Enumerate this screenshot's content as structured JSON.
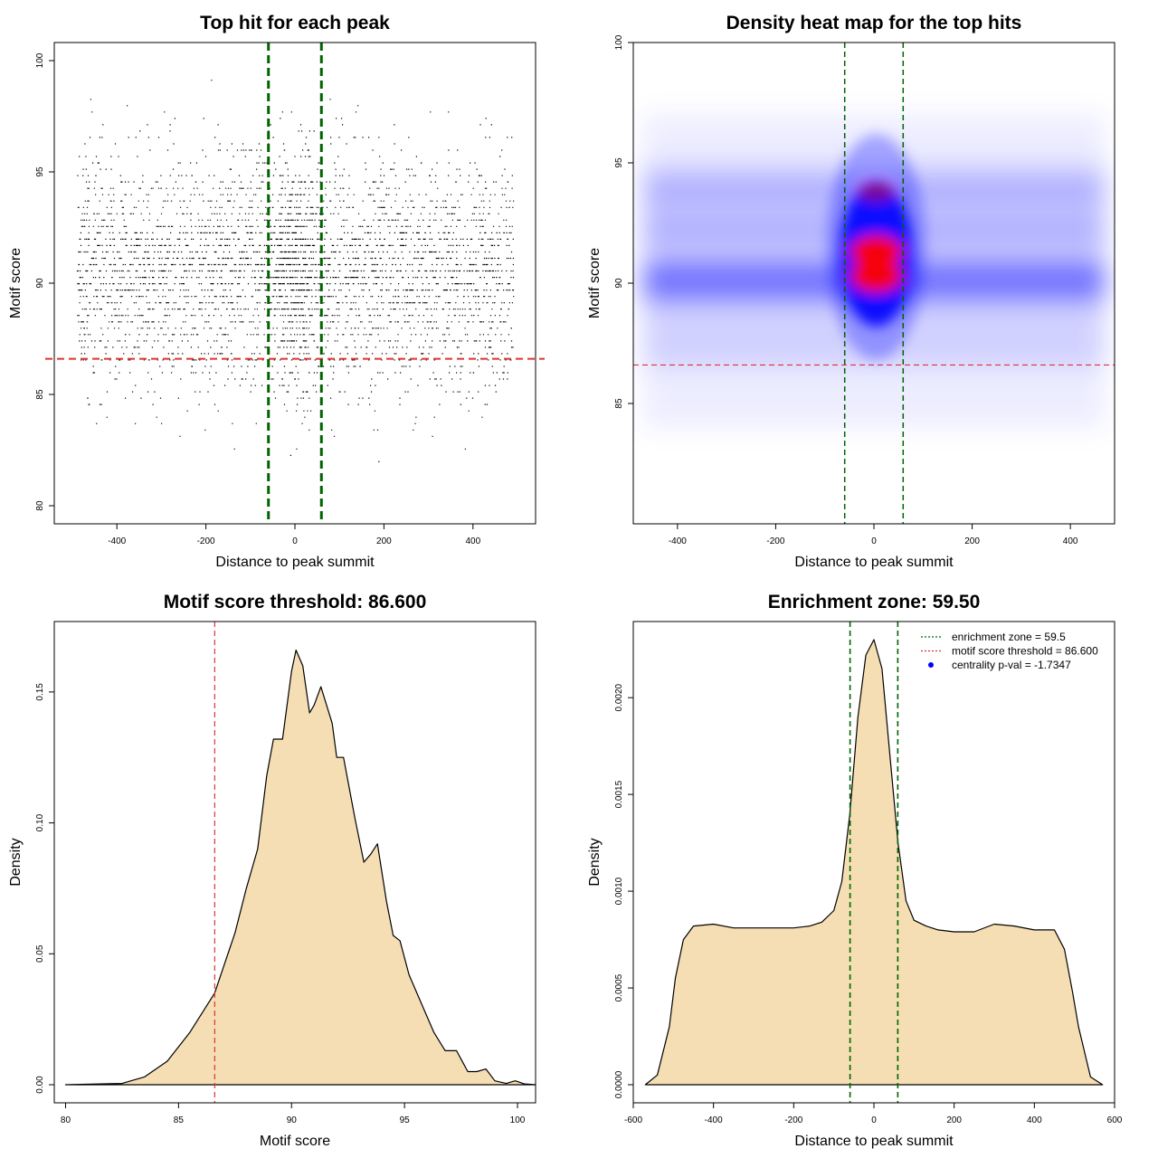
{
  "colors": {
    "point": "#000000",
    "threshold_line": "#dd3333",
    "zone_line": "#006400",
    "density_fill": "#f5deb3",
    "heat_low": "#ffffff",
    "heat_mid": "#0000ff",
    "heat_high": "#ff0000",
    "legend_dot": "#0000ff"
  },
  "chart_data": [
    {
      "type": "scatter",
      "title": "Top hit for each peak",
      "xlabel": "Distance to peak summit",
      "ylabel": "Motif score",
      "xlim": [
        -500,
        500
      ],
      "ylim": [
        80,
        100
      ],
      "xticks": [
        -400,
        -200,
        0,
        200,
        400
      ],
      "yticks": [
        80,
        85,
        90,
        95,
        100
      ],
      "x_range_of_points": [
        -490,
        490
      ],
      "score_center": 90.5,
      "score_spread": 2.6,
      "central_zone_enrichment": true,
      "threshold": 86.6,
      "enrichment_zone": [
        -59.5,
        59.5
      ]
    },
    {
      "type": "heatmap",
      "title": "Density heat map for the top hits",
      "xlabel": "Distance to peak summit",
      "ylabel": "Motif score",
      "xlim": [
        -490,
        490
      ],
      "ylim": [
        80,
        100
      ],
      "xticks": [
        -400,
        -200,
        0,
        200,
        400
      ],
      "yticks": [
        85,
        90,
        95,
        100
      ],
      "hotspots": [
        {
          "x": 5,
          "y": 91.3,
          "intensity": "high"
        },
        {
          "x": 5,
          "y": 90.3,
          "intensity": "high"
        },
        {
          "x": 5,
          "y": 93.8,
          "intensity": "medium"
        }
      ],
      "background_bands": [
        89.8,
        90.4,
        92.2,
        93.8
      ],
      "threshold": 86.6,
      "enrichment_zone": [
        -59.5,
        59.5
      ]
    },
    {
      "type": "area",
      "title": "Motif score threshold: 86.600",
      "xlabel": "Motif score",
      "ylabel": "Density",
      "xlim": [
        79.5,
        100.8
      ],
      "ylim": [
        0,
        0.17
      ],
      "xticks": [
        80,
        85,
        90,
        95,
        100
      ],
      "yticks": [
        0,
        0.05,
        0.1,
        0.15
      ],
      "ytick_labels": [
        "0.00",
        "0.05",
        "0.10",
        "0.15"
      ],
      "x": [
        80.0,
        82.5,
        83.5,
        84.5,
        85.5,
        86.6,
        87.5,
        88.0,
        88.5,
        88.9,
        89.2,
        89.6,
        90.0,
        90.2,
        90.5,
        90.8,
        91.0,
        91.3,
        91.8,
        92.0,
        92.3,
        92.8,
        93.2,
        93.5,
        93.8,
        94.2,
        94.5,
        94.8,
        95.2,
        95.8,
        96.3,
        96.8,
        97.3,
        97.8,
        98.2,
        98.6,
        99.0,
        99.5,
        99.9,
        100.3,
        100.8
      ],
      "y": [
        0,
        0.0005,
        0.003,
        0.009,
        0.02,
        0.035,
        0.058,
        0.075,
        0.09,
        0.118,
        0.132,
        0.132,
        0.158,
        0.166,
        0.16,
        0.142,
        0.145,
        0.152,
        0.138,
        0.125,
        0.125,
        0.102,
        0.085,
        0.088,
        0.092,
        0.07,
        0.057,
        0.055,
        0.042,
        0.03,
        0.02,
        0.013,
        0.013,
        0.005,
        0.005,
        0.006,
        0.0015,
        0.0005,
        0.0015,
        0.0003,
        0
      ],
      "threshold": 86.6
    },
    {
      "type": "area",
      "title": "Enrichment zone: 59.50",
      "xlabel": "Distance to peak summit",
      "ylabel": "Density",
      "xlim": [
        -600,
        600
      ],
      "ylim": [
        0,
        0.0023
      ],
      "xticks": [
        -600,
        -400,
        -200,
        0,
        200,
        400,
        600
      ],
      "yticks": [
        0,
        0.0005,
        0.001,
        0.0015,
        0.002
      ],
      "ytick_labels": [
        "0.0000",
        "0.0005",
        "0.0010",
        "0.0015",
        "0.0020"
      ],
      "x": [
        -570,
        -540,
        -510,
        -495,
        -475,
        -450,
        -400,
        -350,
        -300,
        -250,
        -200,
        -160,
        -130,
        -100,
        -80,
        -60,
        -40,
        -20,
        0,
        20,
        40,
        60,
        80,
        100,
        130,
        160,
        200,
        250,
        300,
        350,
        400,
        450,
        475,
        495,
        510,
        540,
        570
      ],
      "y": [
        0,
        5e-05,
        0.0003,
        0.00055,
        0.00075,
        0.00082,
        0.00083,
        0.00081,
        0.00081,
        0.00081,
        0.00081,
        0.00082,
        0.00084,
        0.0009,
        0.00105,
        0.0014,
        0.0019,
        0.00222,
        0.0023,
        0.00215,
        0.0017,
        0.00125,
        0.00095,
        0.00085,
        0.00082,
        0.0008,
        0.00079,
        0.00079,
        0.00083,
        0.00082,
        0.0008,
        0.0008,
        0.0007,
        0.00048,
        0.0003,
        4e-05,
        0
      ],
      "enrichment_zone": [
        -59.5,
        59.5
      ],
      "legend": {
        "placement": "top-right",
        "entries": [
          {
            "label": "enrichment zone = 59.5",
            "style": "dotted",
            "color": "#006400"
          },
          {
            "label": "motif score threshold = 86.600",
            "style": "dotted",
            "color": "#dd3333"
          },
          {
            "label": "centrality p-val = -1.7347",
            "style": "dot",
            "color": "#0000ff"
          }
        ]
      }
    }
  ]
}
